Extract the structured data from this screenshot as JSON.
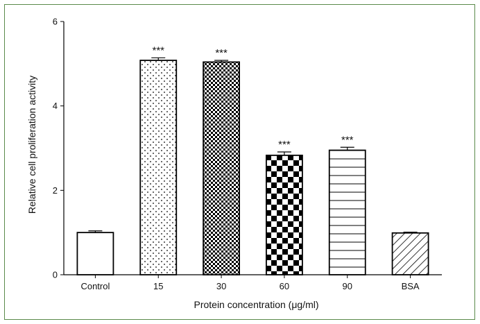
{
  "chart_data": {
    "type": "bar",
    "title": "",
    "xlabel": "Protein concentration (μg/ml)",
    "ylabel": "Relative cell proliferation activity",
    "ylim": [
      0,
      6
    ],
    "yticks": [
      "0",
      "2",
      "4",
      "6"
    ],
    "grid": false,
    "legend": "none",
    "categories": [
      "Control",
      "15",
      "30",
      "60",
      "90",
      "BSA"
    ],
    "values": [
      1.0,
      5.08,
      5.04,
      2.83,
      2.95,
      0.99
    ],
    "error": [
      0.04,
      0.06,
      0.04,
      0.08,
      0.07,
      0.02
    ],
    "significance": [
      "",
      "***",
      "***",
      "***",
      "***",
      ""
    ],
    "fills": [
      "plain",
      "dots",
      "fine-checker",
      "coarse-checker",
      "horizontal-lines",
      "diagonal-hatch"
    ]
  },
  "colors": {
    "frame_border": "#5a8a4a",
    "bar_stroke": "#000000",
    "bar_fill": "#ffffff",
    "pattern_ink": "#000000"
  }
}
